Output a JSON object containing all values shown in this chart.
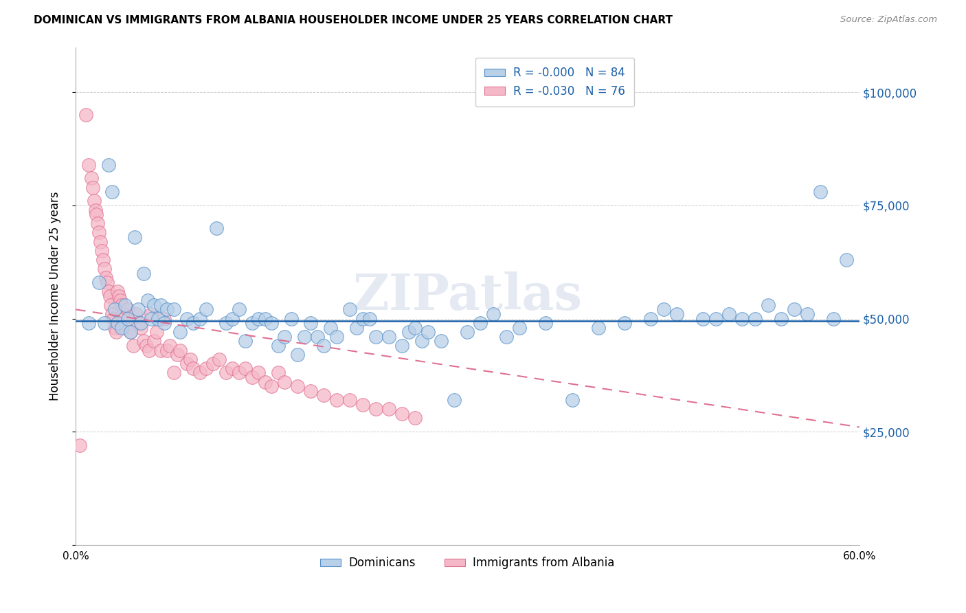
{
  "title": "DOMINICAN VS IMMIGRANTS FROM ALBANIA HOUSEHOLDER INCOME UNDER 25 YEARS CORRELATION CHART",
  "source": "Source: ZipAtlas.com",
  "ylabel": "Householder Income Under 25 years",
  "yticks": [
    0,
    25000,
    50000,
    75000,
    100000
  ],
  "ytick_labels": [
    "",
    "$25,000",
    "$50,000",
    "$75,000",
    "$100,000"
  ],
  "legend_r1": "R = -0.000",
  "legend_n1": "N = 84",
  "legend_r2": "R = -0.030",
  "legend_n2": "N = 76",
  "legend_label1": "Dominicans",
  "legend_label2": "Immigrants from Albania",
  "blue_color": "#b8d0e8",
  "pink_color": "#f5b8c8",
  "blue_edge_color": "#5590c8",
  "pink_edge_color": "#e07090",
  "blue_line_color": "#1a5fa8",
  "pink_trend_color": "#e07090",
  "right_label_color": "#1a5fa8",
  "watermark": "ZIPatlas",
  "blue_scatter_x": [
    0.01,
    0.018,
    0.022,
    0.025,
    0.028,
    0.03,
    0.032,
    0.035,
    0.038,
    0.04,
    0.042,
    0.045,
    0.048,
    0.05,
    0.052,
    0.055,
    0.058,
    0.06,
    0.063,
    0.065,
    0.068,
    0.07,
    0.075,
    0.08,
    0.085,
    0.09,
    0.095,
    0.1,
    0.108,
    0.115,
    0.12,
    0.125,
    0.13,
    0.135,
    0.14,
    0.145,
    0.15,
    0.155,
    0.16,
    0.165,
    0.17,
    0.175,
    0.18,
    0.185,
    0.19,
    0.195,
    0.2,
    0.21,
    0.215,
    0.22,
    0.225,
    0.23,
    0.24,
    0.25,
    0.255,
    0.26,
    0.265,
    0.27,
    0.28,
    0.29,
    0.3,
    0.31,
    0.32,
    0.33,
    0.34,
    0.36,
    0.38,
    0.4,
    0.42,
    0.44,
    0.45,
    0.46,
    0.48,
    0.49,
    0.5,
    0.51,
    0.52,
    0.53,
    0.54,
    0.55,
    0.56,
    0.57,
    0.58,
    0.59
  ],
  "blue_scatter_y": [
    49000,
    58000,
    49000,
    84000,
    78000,
    52000,
    49000,
    48000,
    53000,
    50000,
    47000,
    68000,
    52000,
    49000,
    60000,
    54000,
    50000,
    53000,
    50000,
    53000,
    49000,
    52000,
    52000,
    47000,
    50000,
    49000,
    50000,
    52000,
    70000,
    49000,
    50000,
    52000,
    45000,
    49000,
    50000,
    50000,
    49000,
    44000,
    46000,
    50000,
    42000,
    46000,
    49000,
    46000,
    44000,
    48000,
    46000,
    52000,
    48000,
    50000,
    50000,
    46000,
    46000,
    44000,
    47000,
    48000,
    45000,
    47000,
    45000,
    32000,
    47000,
    49000,
    51000,
    46000,
    48000,
    49000,
    32000,
    48000,
    49000,
    50000,
    52000,
    51000,
    50000,
    50000,
    51000,
    50000,
    50000,
    53000,
    50000,
    52000,
    51000,
    78000,
    50000,
    63000
  ],
  "pink_scatter_x": [
    0.003,
    0.008,
    0.01,
    0.012,
    0.013,
    0.014,
    0.015,
    0.016,
    0.017,
    0.018,
    0.019,
    0.02,
    0.021,
    0.022,
    0.023,
    0.024,
    0.025,
    0.026,
    0.027,
    0.028,
    0.029,
    0.03,
    0.031,
    0.032,
    0.033,
    0.034,
    0.035,
    0.036,
    0.037,
    0.038,
    0.04,
    0.042,
    0.044,
    0.046,
    0.048,
    0.05,
    0.052,
    0.054,
    0.056,
    0.058,
    0.06,
    0.062,
    0.065,
    0.068,
    0.07,
    0.072,
    0.075,
    0.078,
    0.08,
    0.085,
    0.088,
    0.09,
    0.095,
    0.1,
    0.105,
    0.11,
    0.115,
    0.12,
    0.125,
    0.13,
    0.135,
    0.14,
    0.145,
    0.15,
    0.155,
    0.16,
    0.17,
    0.18,
    0.19,
    0.2,
    0.21,
    0.22,
    0.23,
    0.24,
    0.25,
    0.26
  ],
  "pink_scatter_y": [
    22000,
    95000,
    84000,
    81000,
    79000,
    76000,
    74000,
    73000,
    71000,
    69000,
    67000,
    65000,
    63000,
    61000,
    59000,
    58000,
    56000,
    55000,
    53000,
    51000,
    50000,
    48000,
    47000,
    56000,
    55000,
    54000,
    53000,
    51000,
    50000,
    48000,
    52000,
    47000,
    44000,
    51000,
    49000,
    48000,
    45000,
    44000,
    43000,
    51000,
    45000,
    47000,
    43000,
    50000,
    43000,
    44000,
    38000,
    42000,
    43000,
    40000,
    41000,
    39000,
    38000,
    39000,
    40000,
    41000,
    38000,
    39000,
    38000,
    39000,
    37000,
    38000,
    36000,
    35000,
    38000,
    36000,
    35000,
    34000,
    33000,
    32000,
    32000,
    31000,
    30000,
    30000,
    29000,
    28000
  ],
  "xlim": [
    0.0,
    0.6
  ],
  "ylim": [
    0,
    110000
  ],
  "blue_hline_y": 49500,
  "pink_trend_x": [
    0.0,
    0.6
  ],
  "pink_trend_y": [
    52000,
    26000
  ]
}
